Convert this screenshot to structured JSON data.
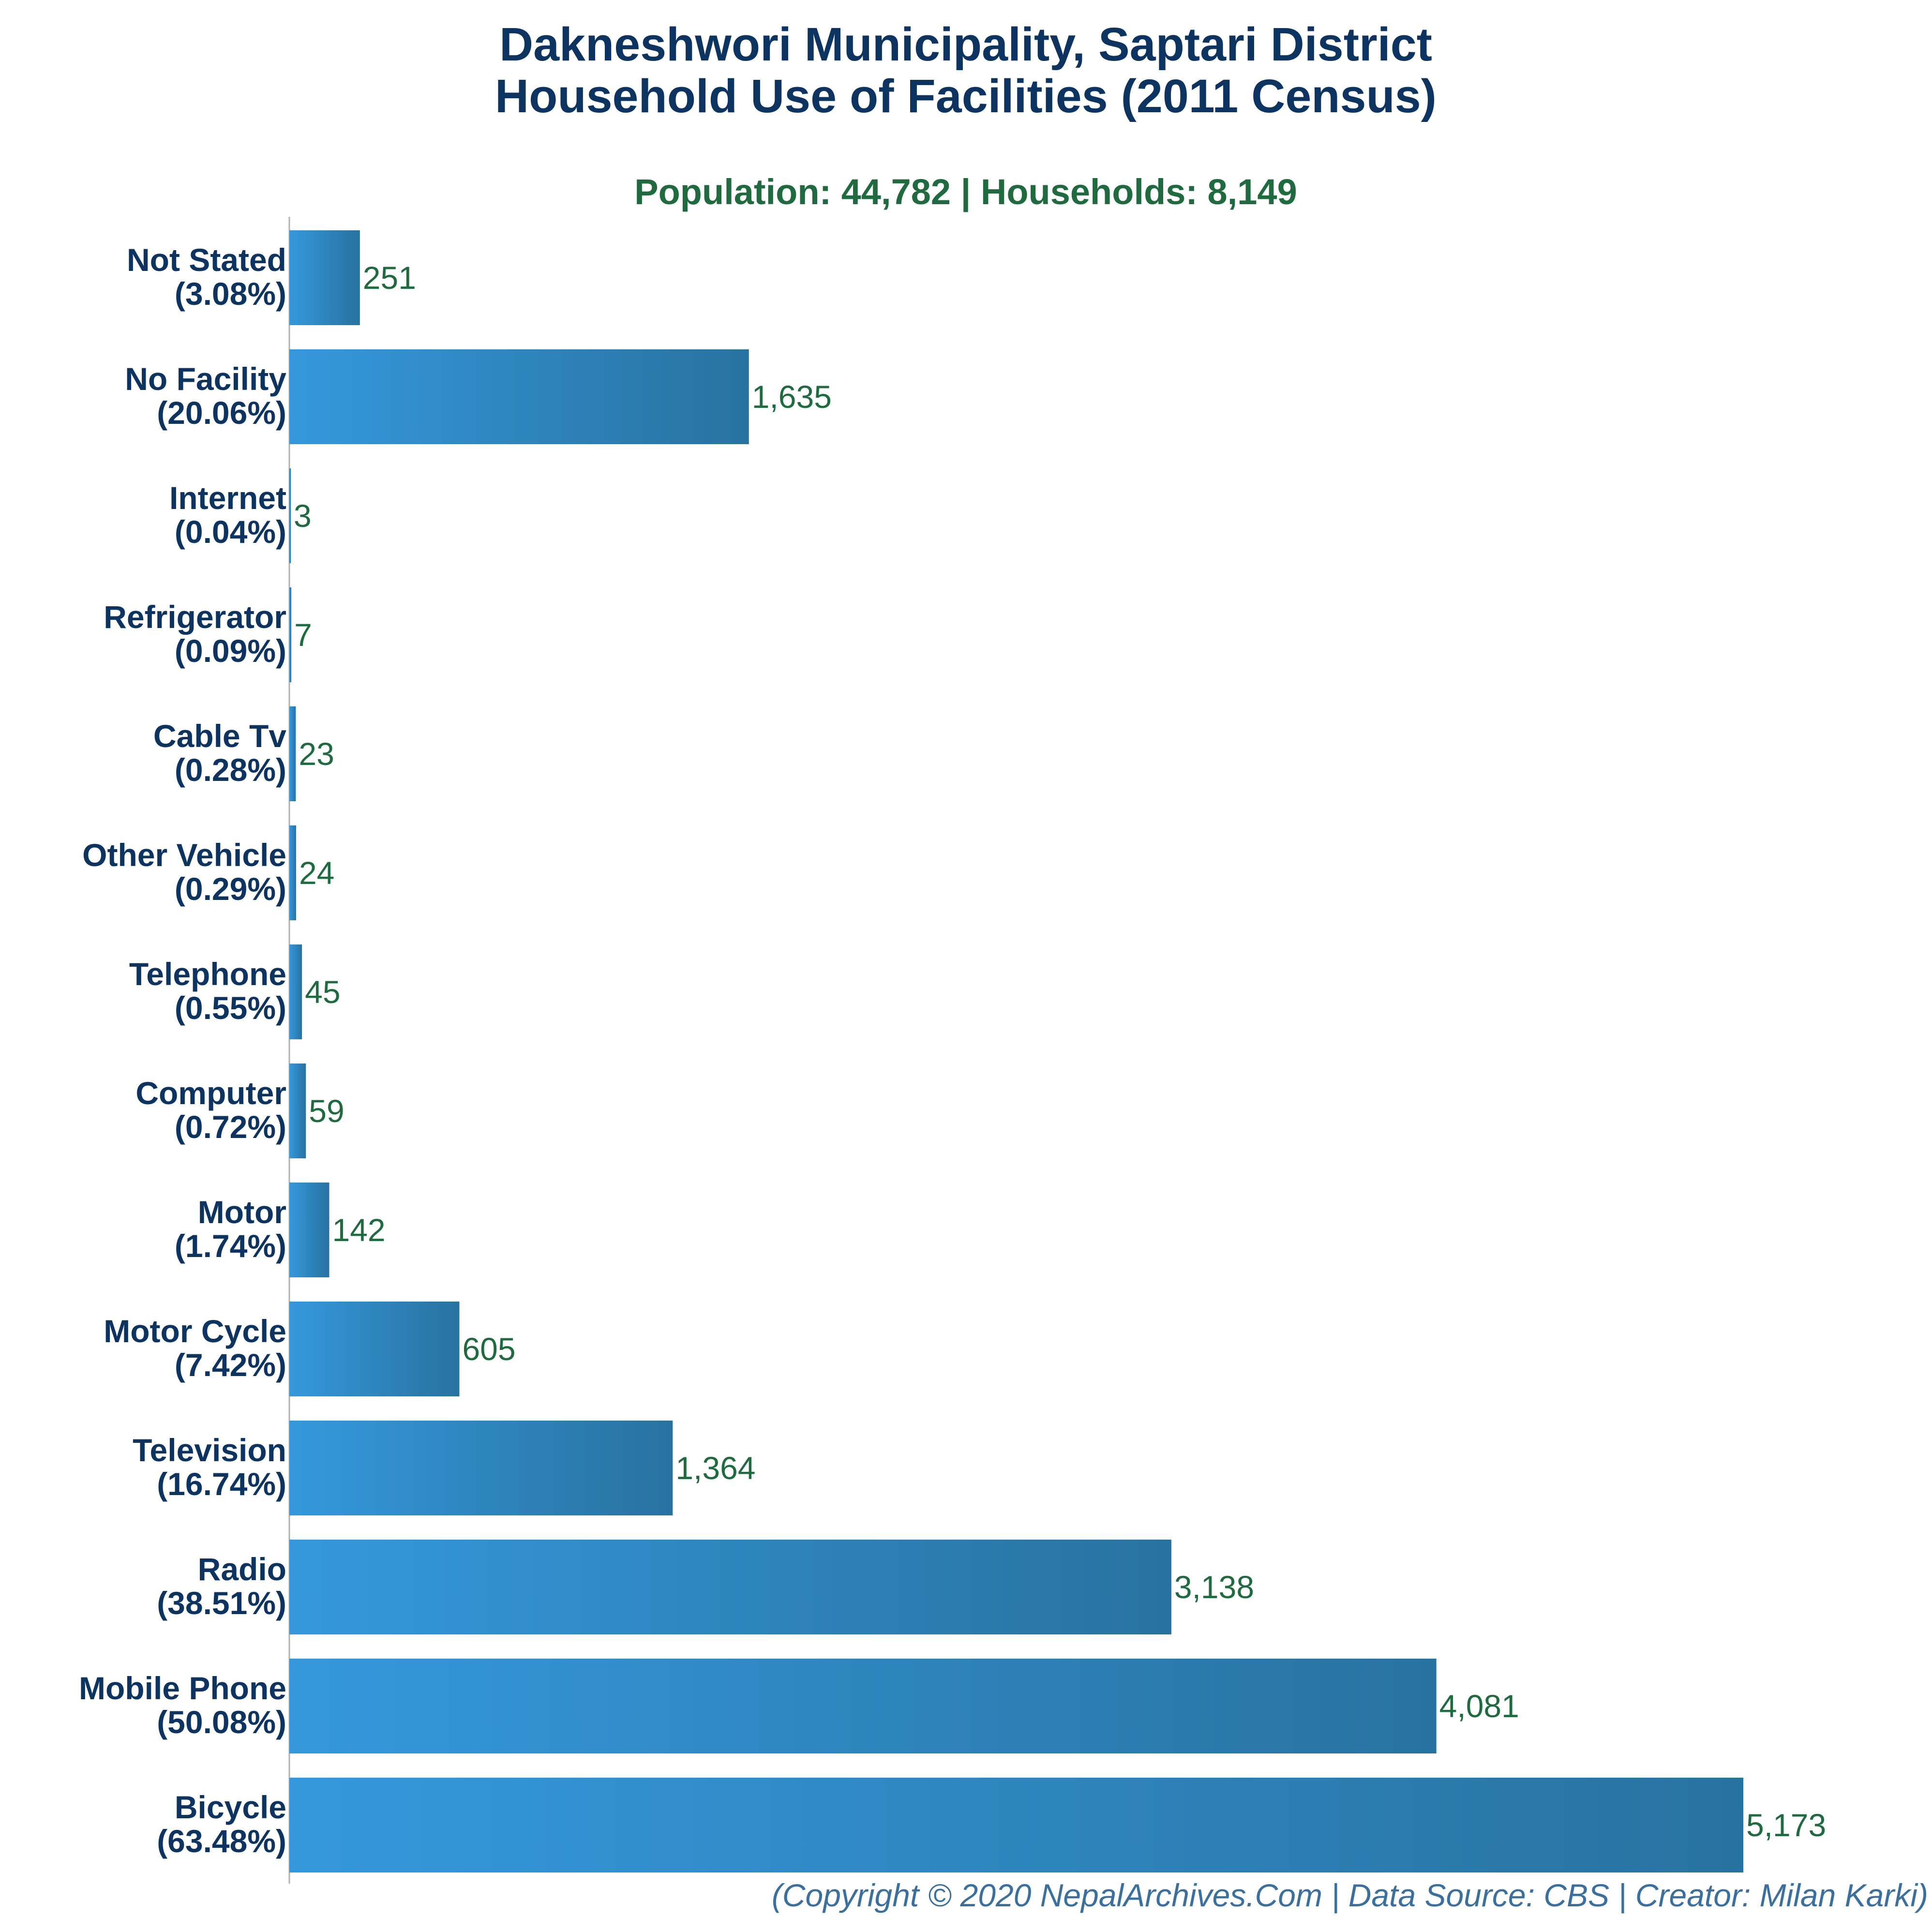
{
  "chart_data": {
    "type": "bar",
    "orientation": "horizontal",
    "title_lines": [
      "Dakneshwori Municipality, Saptari District",
      "Household Use of Facilities (2011 Census)"
    ],
    "subtitle": "Population: 44,782 | Households: 8,149",
    "categories": [
      "Not Stated",
      "No Facility",
      "Internet",
      "Refrigerator",
      "Cable Tv",
      "Other Vehicle",
      "Telephone",
      "Computer",
      "Motor",
      "Motor Cycle",
      "Television",
      "Radio",
      "Mobile Phone",
      "Bicycle"
    ],
    "percent_labels": [
      "(3.08%)",
      "(20.06%)",
      "(0.04%)",
      "(0.09%)",
      "(0.28%)",
      "(0.29%)",
      "(0.55%)",
      "(0.72%)",
      "(1.74%)",
      "(7.42%)",
      "(16.74%)",
      "(38.51%)",
      "(50.08%)",
      "(63.48%)"
    ],
    "values": [
      251,
      1635,
      3,
      7,
      23,
      24,
      45,
      59,
      142,
      605,
      1364,
      3138,
      4081,
      5173
    ],
    "value_labels": [
      "251",
      "1,635",
      "3",
      "7",
      "23",
      "24",
      "45",
      "59",
      "142",
      "605",
      "1,364",
      "3,138",
      "4,081",
      "5,173"
    ],
    "xlim": [
      0,
      5173
    ],
    "grid": false,
    "legend": "none",
    "colors": {
      "bar_start": "#3598dc",
      "bar_end": "#2872a0",
      "title": "#0d3461",
      "subtitle": "#1f6b3f",
      "value_label": "#1f6b3f",
      "axis": "#b0b0b0",
      "footer": "#3a6f9e"
    }
  },
  "footer": "(Copyright © 2020 NepalArchives.Com | Data Source: CBS | Creator: Milan Karki)"
}
